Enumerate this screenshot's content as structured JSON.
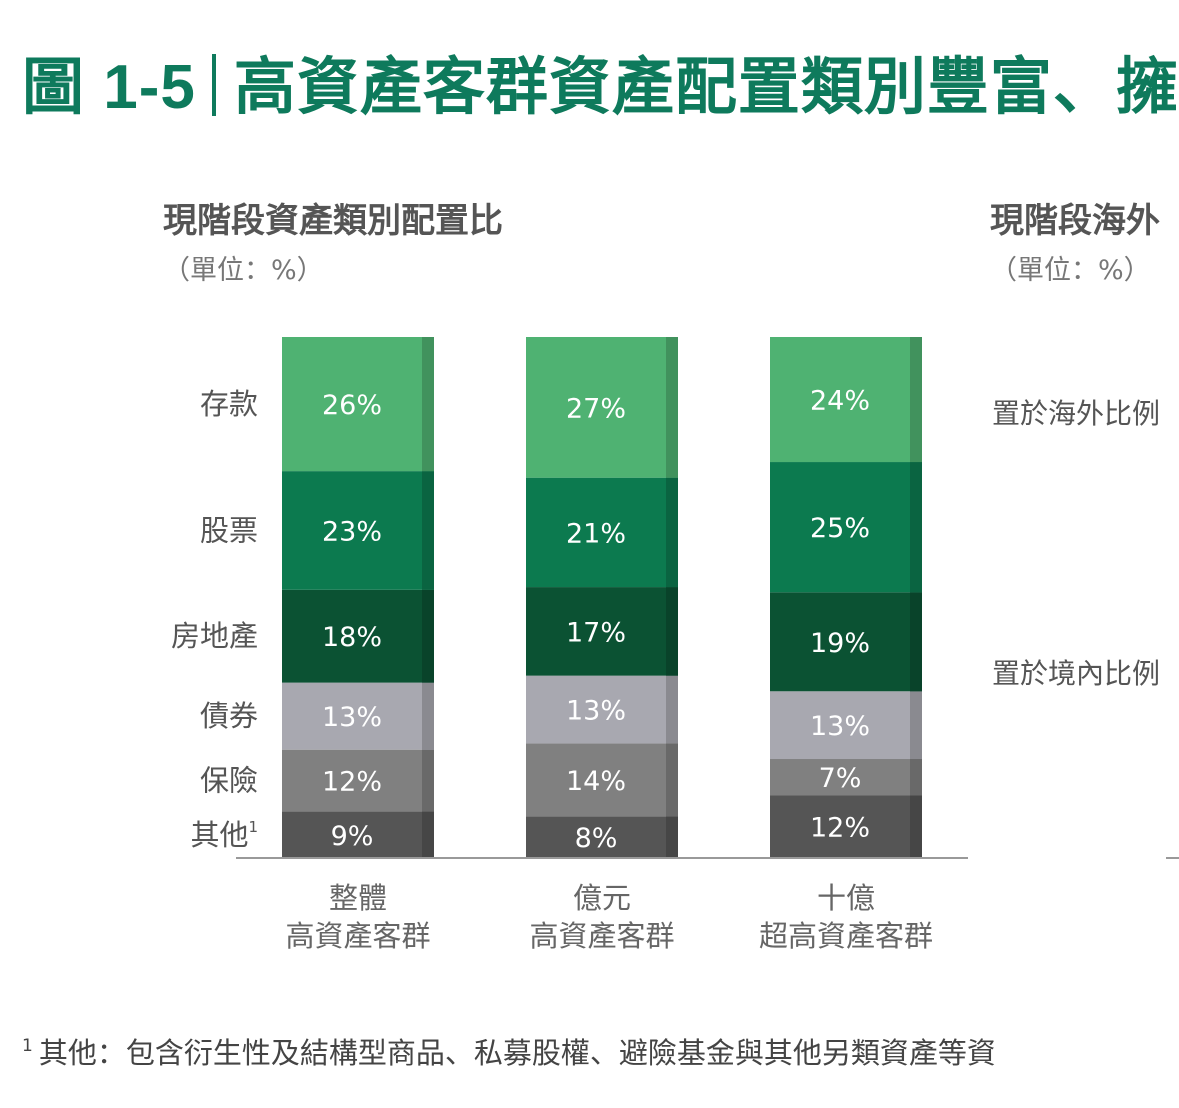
{
  "figure": {
    "label": "圖 1-5",
    "title": "高資產客群資產配置類別豐富、擁"
  },
  "left_panel": {
    "title": "現階段資產類別配置比",
    "unit": "（單位：%）"
  },
  "right_panel": {
    "title": "現階段海外",
    "unit": "（單位：%）",
    "rows": [
      "置於海外比例",
      "置於境內比例"
    ]
  },
  "footnote": {
    "marker": "1",
    "text": "其他：包含衍生性及結構型商品、私募股權、避險基金與其他另類資產等資"
  },
  "chart_data": {
    "type": "bar",
    "stacked": true,
    "categories": [
      [
        "整體",
        "高資產客群"
      ],
      [
        "億元",
        "高資產客群"
      ],
      [
        "十億",
        "超高資產客群"
      ]
    ],
    "series": [
      {
        "name": "其他",
        "sup": "1",
        "color": "#555555",
        "values": [
          9,
          8,
          12
        ]
      },
      {
        "name": "保險",
        "color": "#808080",
        "values": [
          12,
          14,
          7
        ]
      },
      {
        "name": "債券",
        "color": "#a8a8b0",
        "values": [
          13,
          13,
          13
        ]
      },
      {
        "name": "房地產",
        "color": "#0b5233",
        "values": [
          18,
          17,
          19
        ]
      },
      {
        "name": "股票",
        "color": "#0c7a4f",
        "values": [
          23,
          21,
          25
        ]
      },
      {
        "name": "存款",
        "color": "#4fb272",
        "values": [
          26,
          27,
          24
        ]
      }
    ],
    "value_format": "%",
    "ylim": [
      0,
      100
    ],
    "legend": "left-aligned labels per segment"
  }
}
